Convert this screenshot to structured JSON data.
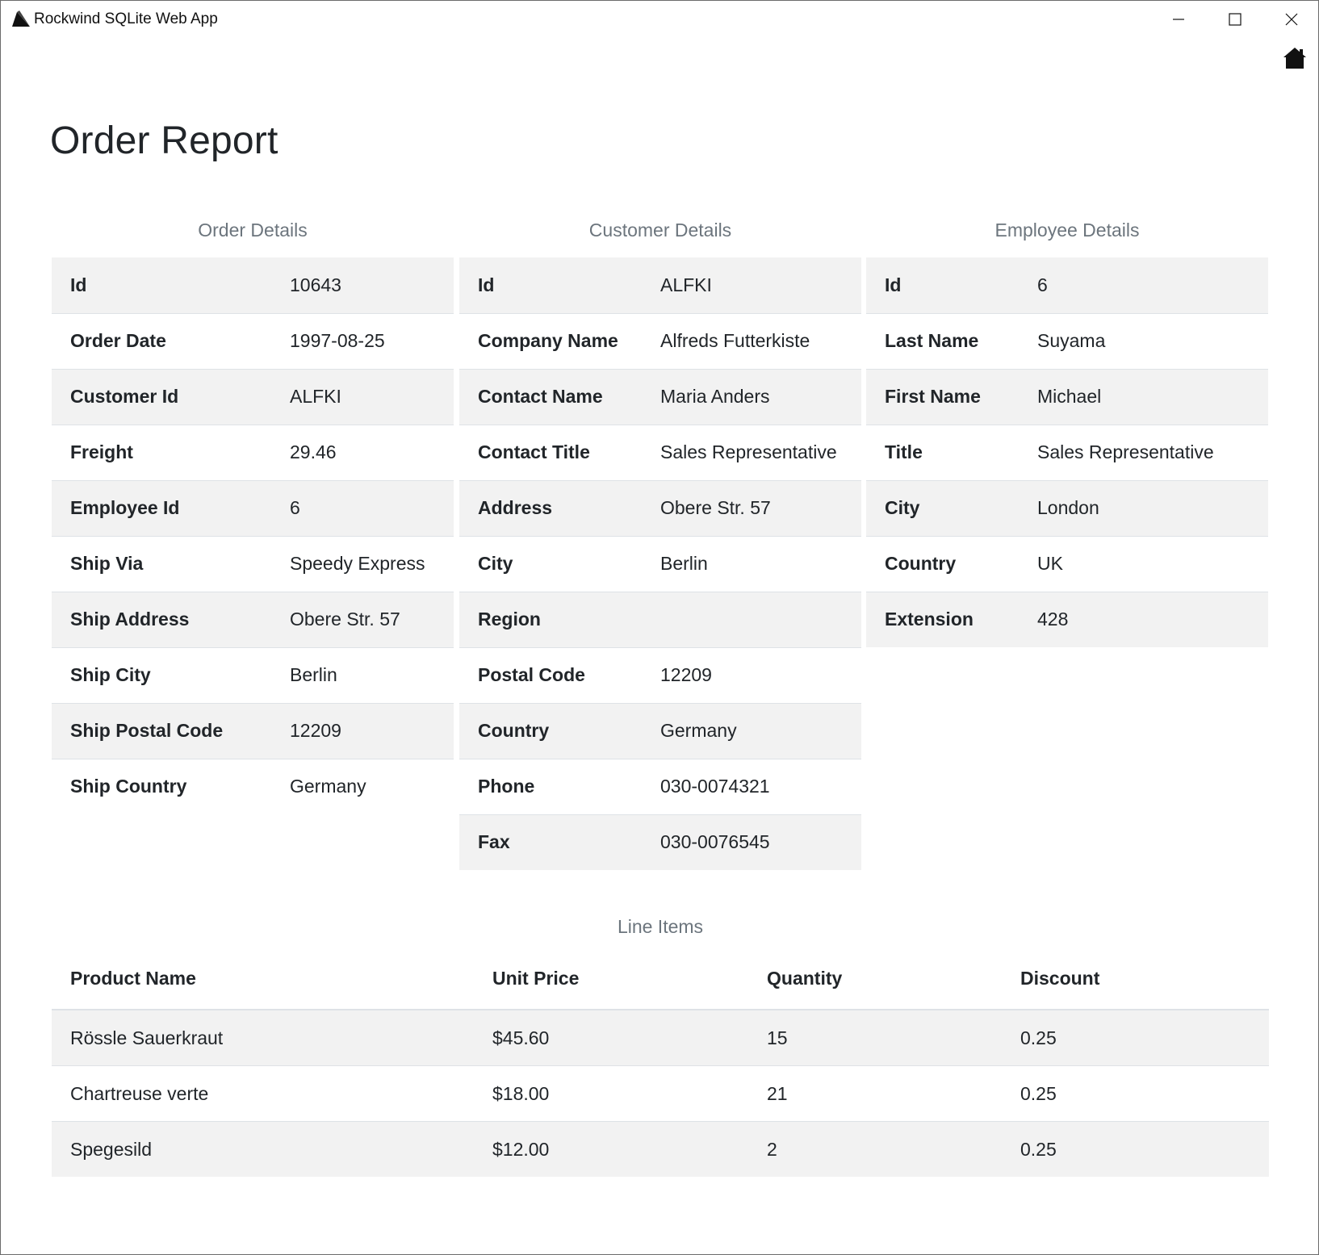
{
  "window": {
    "title": "Rockwind SQLite Web App"
  },
  "page": {
    "title": "Order Report"
  },
  "order_details": {
    "caption": "Order Details",
    "rows": [
      {
        "label": "Id",
        "value": "10643"
      },
      {
        "label": "Order Date",
        "value": "1997-08-25"
      },
      {
        "label": "Customer Id",
        "value": "ALFKI"
      },
      {
        "label": "Freight",
        "value": "29.46"
      },
      {
        "label": "Employee Id",
        "value": "6"
      },
      {
        "label": "Ship Via",
        "value": "Speedy Express"
      },
      {
        "label": "Ship Address",
        "value": "Obere Str. 57"
      },
      {
        "label": "Ship City",
        "value": "Berlin"
      },
      {
        "label": "Ship Postal Code",
        "value": "12209"
      },
      {
        "label": "Ship Country",
        "value": "Germany"
      }
    ]
  },
  "customer_details": {
    "caption": "Customer Details",
    "rows": [
      {
        "label": "Id",
        "value": "ALFKI"
      },
      {
        "label": "Company Name",
        "value": "Alfreds Futterkiste"
      },
      {
        "label": "Contact Name",
        "value": "Maria Anders"
      },
      {
        "label": "Contact Title",
        "value": "Sales Representative"
      },
      {
        "label": "Address",
        "value": "Obere Str. 57"
      },
      {
        "label": "City",
        "value": "Berlin"
      },
      {
        "label": "Region",
        "value": ""
      },
      {
        "label": "Postal Code",
        "value": "12209"
      },
      {
        "label": "Country",
        "value": "Germany"
      },
      {
        "label": "Phone",
        "value": "030-0074321"
      },
      {
        "label": "Fax",
        "value": "030-0076545"
      }
    ]
  },
  "employee_details": {
    "caption": "Employee Details",
    "rows": [
      {
        "label": "Id",
        "value": "6"
      },
      {
        "label": "Last Name",
        "value": "Suyama"
      },
      {
        "label": "First Name",
        "value": "Michael"
      },
      {
        "label": "Title",
        "value": "Sales Representative"
      },
      {
        "label": "City",
        "value": "London"
      },
      {
        "label": "Country",
        "value": "UK"
      },
      {
        "label": "Extension",
        "value": "428"
      }
    ]
  },
  "line_items": {
    "caption": "Line Items",
    "headers": [
      "Product Name",
      "Unit Price",
      "Quantity",
      "Discount"
    ],
    "rows": [
      [
        "Rössle Sauerkraut",
        "$45.60",
        "15",
        "0.25"
      ],
      [
        "Chartreuse verte",
        "$18.00",
        "21",
        "0.25"
      ],
      [
        "Spegesild",
        "$12.00",
        "2",
        "0.25"
      ]
    ]
  },
  "icons": {
    "app": "rockwind-logo-icon",
    "minimize": "minimize-icon",
    "maximize": "maximize-icon",
    "close": "close-icon",
    "home": "home-icon"
  }
}
